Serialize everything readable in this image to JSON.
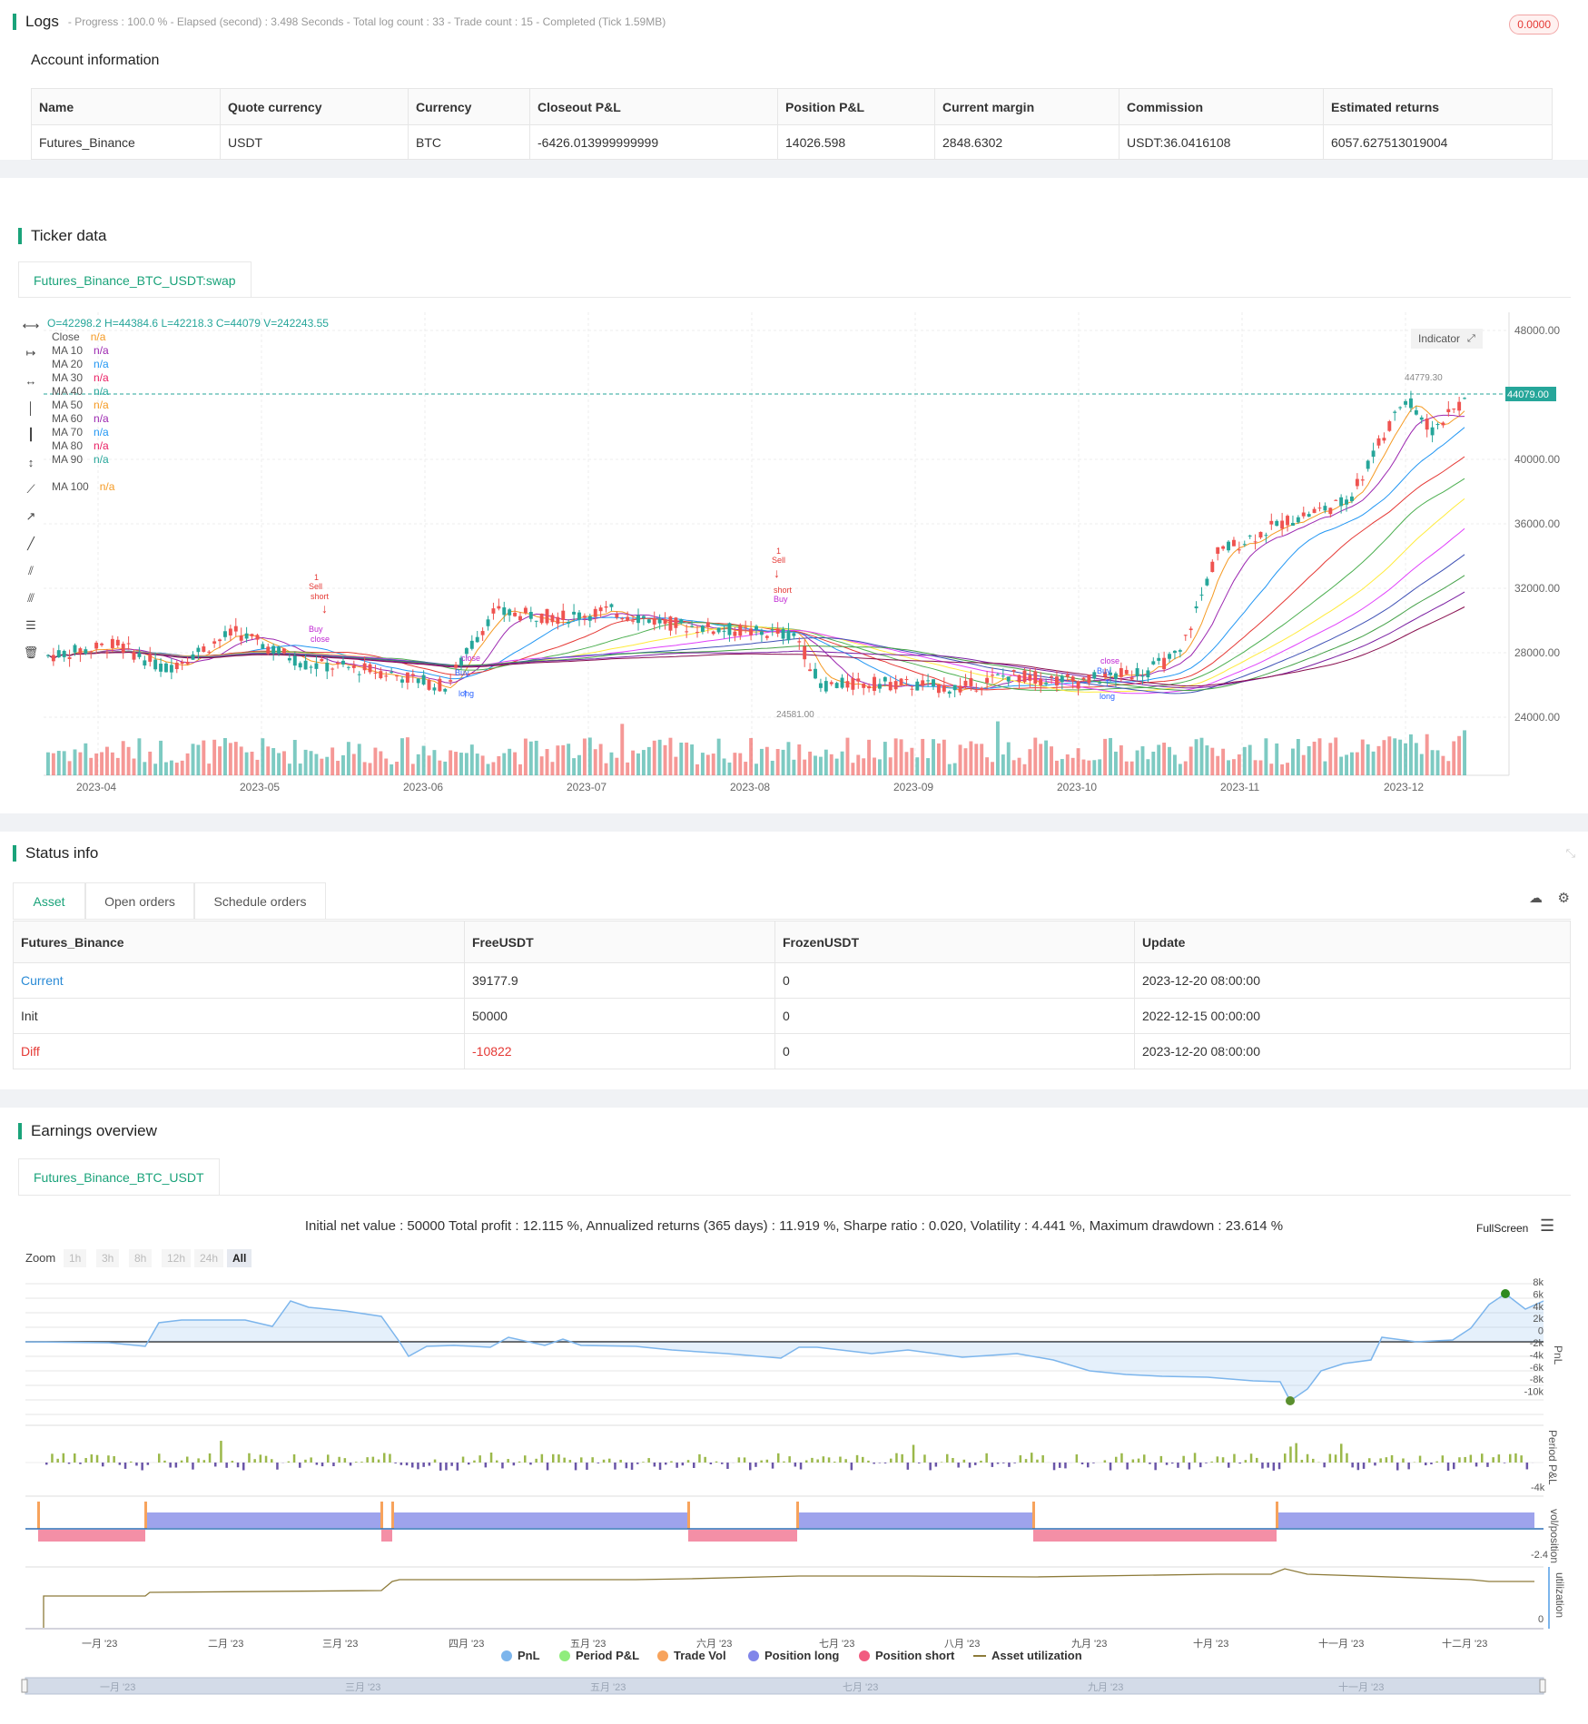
{
  "logs": {
    "title": "Logs",
    "summary": "- Progress : 100.0 % - Elapsed (second) : 3.498  Seconds - Total log count : 33 - Trade count : 15 - Completed (Tick 1.59MB)",
    "badge": "0.0000"
  },
  "account": {
    "title": "Account information",
    "headers": [
      "Name",
      "Quote currency",
      "Currency",
      "Closeout P&L",
      "Position P&L",
      "Current margin",
      "Commission",
      "Estimated returns"
    ],
    "row": [
      "Futures_Binance",
      "USDT",
      "BTC",
      "-6426.013999999999",
      "14026.598",
      "2848.6302",
      "USDT:36.0416108",
      "6057.627513019004"
    ]
  },
  "ticker": {
    "title": "Ticker data",
    "tab": "Futures_Binance_BTC_USDT:swap",
    "ohlc": "O=42298.2 H=44384.6 L=42218.3 C=44079 V=242243.55",
    "indicator_btn": "Indicator",
    "price_tag": "44079.00",
    "high_label": "44779.30",
    "low_label": "24581.00",
    "legend": [
      {
        "name": "Close",
        "value": "n/a",
        "color": "#f59a23"
      },
      {
        "name": "MA 10",
        "value": "n/a",
        "color": "#9c27b0"
      },
      {
        "name": "MA 20",
        "value": "n/a",
        "color": "#2196f3"
      },
      {
        "name": "MA 30",
        "value": "n/a",
        "color": "#e91e63"
      },
      {
        "name": "MA 40",
        "value": "n/a",
        "color": "#26a69a"
      },
      {
        "name": "MA 50",
        "value": "n/a",
        "color": "#f59a23"
      },
      {
        "name": "MA 60",
        "value": "n/a",
        "color": "#9c27b0"
      },
      {
        "name": "MA 70",
        "value": "n/a",
        "color": "#2196f3"
      },
      {
        "name": "MA 80",
        "value": "n/a",
        "color": "#e91e63"
      },
      {
        "name": "MA 90",
        "value": "n/a",
        "color": "#26a69a"
      },
      {
        "name": "MA 100",
        "value": "n/a",
        "color": "#f59a23"
      }
    ],
    "y_ticks": [
      "48000.00",
      "40000.00",
      "36000.00",
      "32000.00",
      "28000.00",
      "24000.00"
    ],
    "x_ticks": [
      "2023-04",
      "2023-05",
      "2023-06",
      "2023-07",
      "2023-08",
      "2023-09",
      "2023-10",
      "2023-11",
      "2023-12"
    ],
    "markers": [
      {
        "text": "1",
        "color": "#e53935"
      },
      {
        "text": "Sell",
        "color": "#e53935"
      },
      {
        "text": "short",
        "color": "#e53935"
      },
      {
        "text": "Buy",
        "color": "#c026d3"
      },
      {
        "text": "close",
        "color": "#c026d3"
      },
      {
        "text": "close",
        "color": "#c026d3"
      },
      {
        "text": "Buy",
        "color": "#2962ff"
      },
      {
        "text": "1",
        "color": "#2962ff"
      },
      {
        "text": "long",
        "color": "#2962ff"
      }
    ]
  },
  "status": {
    "title": "Status info",
    "tabs": [
      "Asset",
      "Open orders",
      "Schedule orders"
    ],
    "headers": [
      "Futures_Binance",
      "FreeUSDT",
      "FrozenUSDT",
      "Update"
    ],
    "rows": [
      [
        "Current",
        "39177.9",
        "0",
        "2023-12-20 08:00:00"
      ],
      [
        "Init",
        "50000",
        "0",
        "2022-12-15 00:00:00"
      ],
      [
        "Diff",
        "-10822",
        "0",
        "2023-12-20 08:00:00"
      ]
    ]
  },
  "earnings": {
    "title": "Earnings overview",
    "tab": "Futures_Binance_BTC_USDT",
    "summary": "Initial net value : 50000 Total profit : 12.115 %, Annualized returns (365 days) : 11.919 %, Sharpe ratio : 0.020, Volatility : 4.441 %, Maximum drawdown : 23.614 %",
    "fullscreen": "FullScreen",
    "zoom_label": "Zoom",
    "zoom_options": [
      "1h",
      "3h",
      "8h",
      "12h",
      "24h",
      "All"
    ],
    "pnl_ticks": [
      "8k",
      "6k",
      "4k",
      "2k",
      "0",
      "-2k",
      "-4k",
      "-6k",
      "-8k",
      "-10k"
    ],
    "axis_titles": [
      "PnL",
      "Period P&L",
      "vol/position",
      "utilization"
    ],
    "period_tick": "-4k",
    "pos_tick": "-2.4",
    "util_tick": "0",
    "months": [
      "一月 '23",
      "二月 '23",
      "三月 '23",
      "四月 '23",
      "五月 '23",
      "六月 '23",
      "七月 '23",
      "八月 '23",
      "九月 '23",
      "十月 '23",
      "十一月 '23",
      "十二月 '23"
    ],
    "nav_months": [
      "一月 '23",
      "三月 '23",
      "五月 '23",
      "七月 '23",
      "九月 '23",
      "十一月 '23"
    ],
    "legend": [
      {
        "name": "PnL",
        "color": "#7cb5ec"
      },
      {
        "name": "Period P&L",
        "color": "#90ed7d"
      },
      {
        "name": "Trade Vol",
        "color": "#f7a35c"
      },
      {
        "name": "Position long",
        "color": "#8085e9"
      },
      {
        "name": "Position short",
        "color": "#f15c80"
      },
      {
        "name": "Asset utilization",
        "color": "#8d7b3a"
      }
    ]
  }
}
